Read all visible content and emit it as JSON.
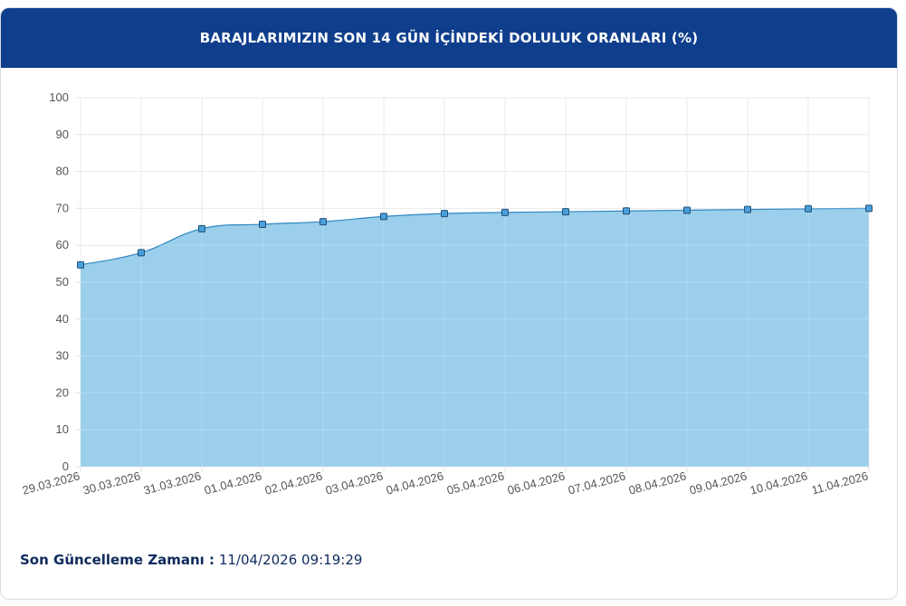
{
  "header": {
    "title": "BARAJLARIMIZIN SON 14 GÜN İÇİNDEKİ DOLULUK ORANLARI (%)",
    "background_color": "#0f3e8c"
  },
  "footer": {
    "label": "Son Güncelleme Zamanı :",
    "value": "11/04/2026 09:19:29"
  },
  "chart_data": {
    "type": "area",
    "categories": [
      "29.03.2026",
      "30.03.2026",
      "31.03.2026",
      "01.04.2026",
      "02.04.2026",
      "03.04.2026",
      "04.04.2026",
      "05.04.2026",
      "06.04.2026",
      "07.04.2026",
      "08.04.2026",
      "09.04.2026",
      "10.04.2026",
      "11.04.2026"
    ],
    "series": [
      {
        "values": [
          54.7,
          58.0,
          64.5,
          65.7,
          66.4,
          67.8,
          68.6,
          68.9,
          69.1,
          69.3,
          69.5,
          69.7,
          69.9,
          70.0
        ]
      }
    ],
    "yticks": [
      "0",
      "10",
      "20",
      "30",
      "40",
      "50",
      "60",
      "70",
      "80",
      "90",
      "100"
    ],
    "ylim": [
      0,
      100
    ],
    "grid": true,
    "fill_color": "#9bcfeb",
    "line_color": "#2e86c1",
    "marker_color": "#4a9fd8"
  }
}
